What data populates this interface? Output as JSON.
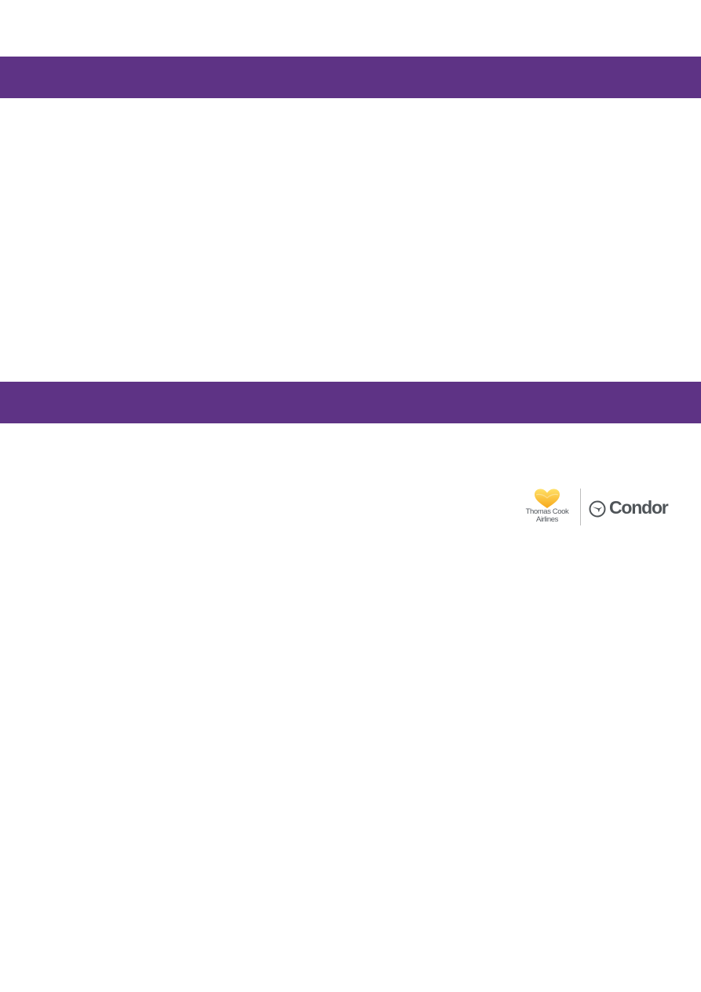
{
  "colors": {
    "band": "#5e3385",
    "heart_top": "#ffe066",
    "heart_bottom": "#f7a81b",
    "logo_text": "#555a60"
  },
  "logo": {
    "tc_line1": "Thomas Cook",
    "tc_line2": "Airlines",
    "condor_name": "Condor"
  }
}
